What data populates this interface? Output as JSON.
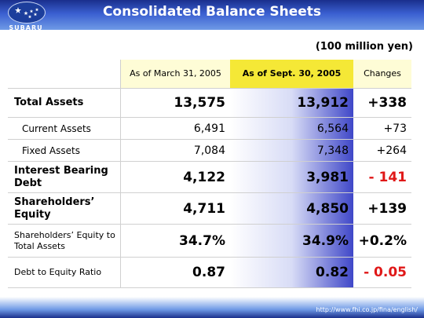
{
  "header": {
    "logo_text": "SUBARU",
    "title": "Consolidated Balance Sheets"
  },
  "unit": "(100 million yen)",
  "columns": [
    "As of March 31, 2005",
    "As of Sept. 30, 2005",
    "Changes"
  ],
  "rows": [
    {
      "label": "Total Assets",
      "v1": "13,575",
      "v2": "13,912",
      "v3": "+338"
    },
    {
      "label": "Current Assets",
      "v1": "6,491",
      "v2": "6,564",
      "v3": "+73"
    },
    {
      "label": "Fixed Assets",
      "v1": "7,084",
      "v2": "7,348",
      "v3": "+264"
    },
    {
      "label": "Interest Bearing Debt",
      "v1": "4,122",
      "v2": "3,981",
      "v3": "- 141"
    },
    {
      "label": "Shareholders’ Equity",
      "v1": "4,711",
      "v2": "4,850",
      "v3": "+139"
    },
    {
      "label": "Shareholders’ Equity to Total Assets",
      "v1": "34.7%",
      "v2": "34.9%",
      "v3": "+0.2%"
    },
    {
      "label": "Debt to Equity Ratio",
      "v1": "0.87",
      "v2": "0.82",
      "v3": "- 0.05"
    }
  ],
  "colors": {
    "negative": "#e01818",
    "header_highlight": "#f5e836"
  },
  "footer": {
    "url": "http://www.fhi.co.jp/fina/english/"
  }
}
